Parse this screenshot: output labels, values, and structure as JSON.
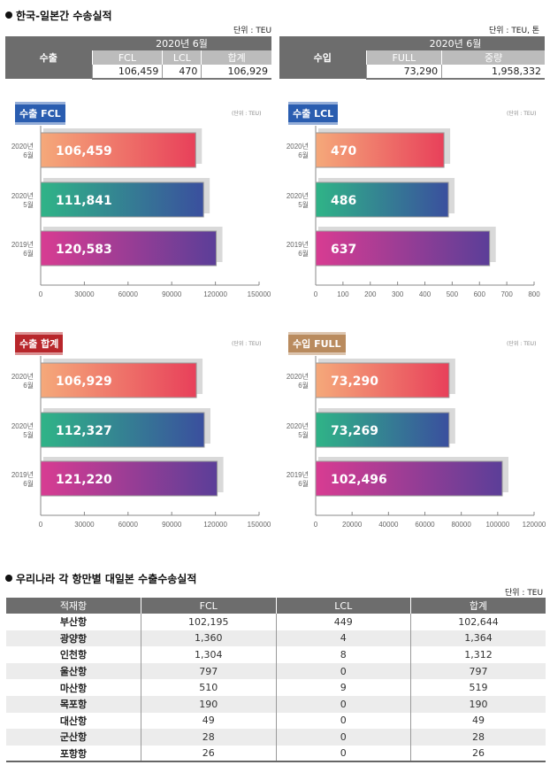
{
  "summary": {
    "title": "한국-일본간 수송실적",
    "export": {
      "unit": "단위 : TEU",
      "row_label": "수출",
      "period": "2020년 6월",
      "columns": [
        "FCL",
        "LCL",
        "합계"
      ],
      "values": [
        "106,459",
        "470",
        "106,929"
      ]
    },
    "import": {
      "unit": "단위 : TEU, 톤",
      "row_label": "수입",
      "period": "2020년 6월",
      "columns": [
        "FULL",
        "중량"
      ],
      "values": [
        "73,290",
        "1,958,332"
      ]
    }
  },
  "colors": {
    "badge_blue": "#2a5db0",
    "badge_red": "#b8262b",
    "badge_wood": "#b98b5e",
    "table_header": "#6d6d6d"
  },
  "chart_data": [
    {
      "type": "bar",
      "orientation": "horizontal",
      "title": "수출 FCL",
      "unit": "(단위 : TEU)",
      "categories": [
        [
          "2020년",
          "6월"
        ],
        [
          "2020년",
          "5월"
        ],
        [
          "2019년",
          "6월"
        ]
      ],
      "values": [
        106459,
        111841,
        120583
      ],
      "labels": [
        "106,459",
        "111,841",
        "120,583"
      ],
      "xlim": [
        0,
        150000
      ],
      "xticks": [
        0,
        30000,
        60000,
        90000,
        120000,
        150000
      ]
    },
    {
      "type": "bar",
      "orientation": "horizontal",
      "title": "수출 LCL",
      "unit": "(단위 : TEU)",
      "categories": [
        [
          "2020년",
          "6월"
        ],
        [
          "2020년",
          "5월"
        ],
        [
          "2019년",
          "6월"
        ]
      ],
      "values": [
        470,
        486,
        637
      ],
      "labels": [
        "470",
        "486",
        "637"
      ],
      "xlim": [
        0,
        800
      ],
      "xticks": [
        0,
        100,
        200,
        300,
        400,
        500,
        600,
        700,
        800
      ]
    },
    {
      "type": "bar",
      "orientation": "horizontal",
      "title": "수출 합계",
      "unit": "(단위 : TEU)",
      "categories": [
        [
          "2020년",
          "6월"
        ],
        [
          "2020년",
          "5월"
        ],
        [
          "2019년",
          "6월"
        ]
      ],
      "values": [
        106929,
        112327,
        121220
      ],
      "labels": [
        "106,929",
        "112,327",
        "121,220"
      ],
      "xlim": [
        0,
        150000
      ],
      "xticks": [
        0,
        30000,
        60000,
        90000,
        120000,
        150000
      ]
    },
    {
      "type": "bar",
      "orientation": "horizontal",
      "title": "수입 FULL",
      "unit": "(단위 : TEU)",
      "categories": [
        [
          "2020년",
          "6월"
        ],
        [
          "2020년",
          "5월"
        ],
        [
          "2019년",
          "6월"
        ]
      ],
      "values": [
        73290,
        73269,
        102496
      ],
      "labels": [
        "73,290",
        "73,269",
        "102,496"
      ],
      "xlim": [
        0,
        120000
      ],
      "xticks": [
        0,
        20000,
        40000,
        60000,
        80000,
        100000,
        120000
      ]
    }
  ],
  "ports": {
    "title": "우리나라 각 항만별 대일본 수출수송실적",
    "unit": "단위 : TEU",
    "columns": [
      "적재항",
      "FCL",
      "LCL",
      "합계"
    ],
    "rows": [
      [
        "부산항",
        "102,195",
        "449",
        "102,644"
      ],
      [
        "광양항",
        "1,360",
        "4",
        "1,364"
      ],
      [
        "인천항",
        "1,304",
        "8",
        "1,312"
      ],
      [
        "울산항",
        "797",
        "0",
        "797"
      ],
      [
        "마산항",
        "510",
        "9",
        "519"
      ],
      [
        "목포항",
        "190",
        "0",
        "190"
      ],
      [
        "대산항",
        "49",
        "0",
        "49"
      ],
      [
        "군산항",
        "28",
        "0",
        "28"
      ],
      [
        "포항항",
        "26",
        "0",
        "26"
      ]
    ]
  }
}
